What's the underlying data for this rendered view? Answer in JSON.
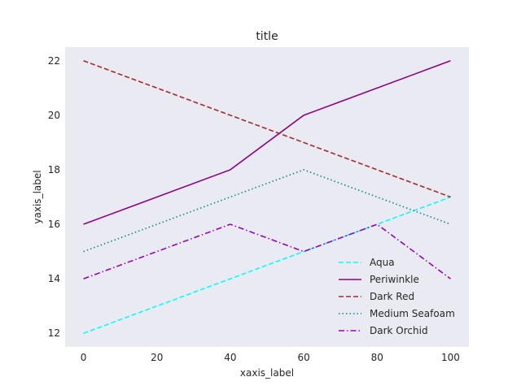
{
  "chart_data": {
    "type": "line",
    "title": "title",
    "xlabel": "xaxis_label",
    "ylabel": "yaxis_label",
    "xlim": [
      -5,
      105
    ],
    "ylim": [
      11.5,
      22.5
    ],
    "xticks": [
      0,
      20,
      40,
      60,
      80,
      100
    ],
    "yticks": [
      12,
      14,
      16,
      18,
      20,
      22
    ],
    "background": "#eaeaf2",
    "grid": false,
    "legend_position": "lower right",
    "series": [
      {
        "name": "Aqua",
        "x": [
          0,
          100
        ],
        "y": [
          12,
          17
        ],
        "color": "#00ffff",
        "dash": "dashed"
      },
      {
        "name": "Periwinkle",
        "x": [
          0,
          40,
          60,
          100
        ],
        "y": [
          16,
          18,
          20,
          22
        ],
        "color": "#8b008b",
        "dash": "solid"
      },
      {
        "name": "Dark Red",
        "x": [
          0,
          100
        ],
        "y": [
          22,
          17
        ],
        "color": "#a52a2a",
        "dash": "dashed"
      },
      {
        "name": "Medium Seafoam",
        "x": [
          0,
          60,
          100
        ],
        "y": [
          15,
          18,
          16
        ],
        "color": "#008b8b",
        "dash": "dotted"
      },
      {
        "name": "Dark Orchid",
        "x": [
          0,
          40,
          60,
          80,
          100
        ],
        "y": [
          14,
          16,
          15,
          16,
          14
        ],
        "color": "#9400d3",
        "dash": "dashdot"
      }
    ]
  }
}
